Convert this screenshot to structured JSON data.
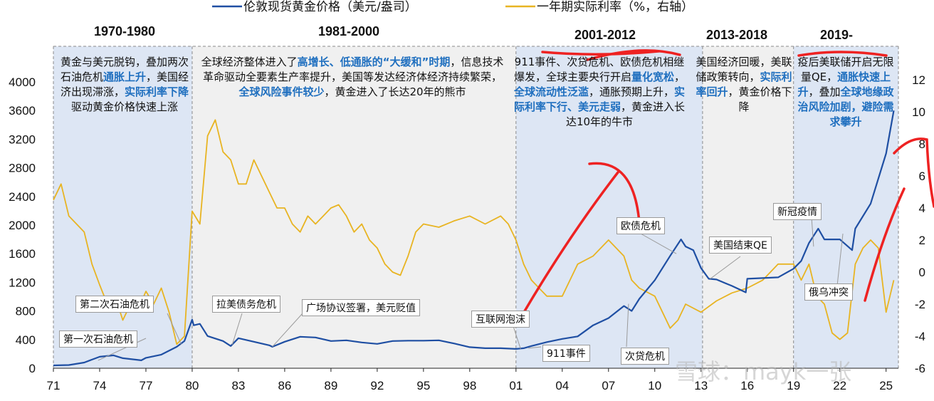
{
  "chart_data": {
    "type": "line",
    "legend": {
      "placement": "top-center",
      "items": [
        {
          "label": "伦敦现货黄金价格（美元/盎司）",
          "color": "#1f4fa3"
        },
        {
          "label": "一年期实际利率（%，右轴）",
          "color": "#e8b422"
        }
      ]
    },
    "x_ticks": [
      "71",
      "74",
      "77",
      "80",
      "83",
      "86",
      "89",
      "92",
      "95",
      "98",
      "01",
      "04",
      "07",
      "10",
      "13",
      "16",
      "19",
      "22",
      "25"
    ],
    "y_left": {
      "min": 0,
      "max": 4000,
      "ticks": [
        "0",
        "400",
        "800",
        "1200",
        "1600",
        "2000",
        "2400",
        "2800",
        "3200",
        "3600",
        "4000"
      ]
    },
    "y_right": {
      "min": -6,
      "max": 12,
      "ticks": [
        "-6",
        "-4",
        "-2",
        "0",
        "2",
        "4",
        "6",
        "8",
        "10",
        "12"
      ]
    },
    "series": [
      {
        "name": "伦敦现货黄金价格（美元/盎司）",
        "axis": "left",
        "color": "#1f4fa3",
        "x": [
          1971,
          1972,
          1973,
          1973.5,
          1974,
          1974.9,
          1975.5,
          1976.7,
          1977,
          1978,
          1979,
          1979.5,
          1980,
          1980.1,
          1980.5,
          1981,
          1982,
          1982.5,
          1983,
          1984,
          1985,
          1985.2,
          1986,
          1987,
          1988,
          1989,
          1990,
          1991,
          1992,
          1993,
          1994,
          1995,
          1996,
          1997,
          1998,
          1999,
          2000,
          2001,
          2001.5,
          2002,
          2003,
          2004,
          2005,
          2006,
          2007,
          2008,
          2008.5,
          2009,
          2010,
          2011,
          2011.7,
          2012,
          2012.5,
          2013,
          2013.5,
          2014,
          2015,
          2015.9,
          2016,
          2017,
          2018,
          2019,
          2019.5,
          2020,
          2020.6,
          2021,
          2022,
          2022.8,
          2023,
          2024,
          2025,
          2025.5
        ],
        "y": [
          40,
          45,
          80,
          120,
          160,
          180,
          140,
          110,
          145,
          190,
          300,
          380,
          680,
          600,
          620,
          450,
          380,
          310,
          420,
          370,
          320,
          300,
          370,
          440,
          430,
          380,
          390,
          360,
          340,
          380,
          385,
          385,
          390,
          345,
          295,
          280,
          280,
          270,
          280,
          310,
          365,
          410,
          445,
          600,
          700,
          870,
          800,
          970,
          1230,
          1570,
          1800,
          1700,
          1650,
          1400,
          1250,
          1240,
          1150,
          1060,
          1250,
          1260,
          1270,
          1390,
          1500,
          1750,
          1950,
          1800,
          1800,
          1650,
          1950,
          2300,
          3000,
          3600
        ]
      },
      {
        "name": "一年期实际利率（%，右轴）",
        "axis": "right",
        "color": "#e8b422",
        "x": [
          1971,
          1971.5,
          1972,
          1972.5,
          1973,
          1973.5,
          1974,
          1974.5,
          1975,
          1975.5,
          1976,
          1976.5,
          1977,
          1977.5,
          1978,
          1978.5,
          1979,
          1979.5,
          1980,
          1980.5,
          1981,
          1981.5,
          1982,
          1982.5,
          1983,
          1983.5,
          1984,
          1984.5,
          1985,
          1985.5,
          1986,
          1986.5,
          1987,
          1987.5,
          1988,
          1988.5,
          1989,
          1989.5,
          1990,
          1990.5,
          1991,
          1991.5,
          1992,
          1992.5,
          1993,
          1993.5,
          1994,
          1994.5,
          1995,
          1996,
          1997,
          1998,
          1999,
          2000,
          2000.5,
          2001,
          2001.5,
          2002,
          2003,
          2004,
          2005,
          2006,
          2007,
          2007.5,
          2008,
          2008.5,
          2009,
          2010,
          2011,
          2011.5,
          2012,
          2013,
          2014,
          2015,
          2016,
          2017,
          2018,
          2019,
          2019.5,
          2020,
          2020.5,
          2021,
          2021.5,
          2022,
          2022.5,
          2023,
          2023.5,
          2024,
          2024.5,
          2025,
          2025.5
        ],
        "y": [
          4.5,
          5.5,
          3.5,
          3.0,
          2.5,
          0.5,
          -0.8,
          -2.0,
          -1.5,
          -3.0,
          -2.0,
          -2.3,
          -1.2,
          -2.0,
          -1.0,
          -2.5,
          -4.5,
          -4.0,
          3.8,
          3.0,
          8.5,
          9.5,
          7.5,
          7.0,
          5.5,
          5.5,
          7.0,
          6.0,
          5.0,
          4.0,
          4.0,
          3.0,
          2.5,
          3.5,
          3.0,
          3.5,
          4.0,
          4.2,
          3.5,
          2.5,
          3.0,
          2.0,
          1.5,
          0.5,
          0.0,
          -0.2,
          1.0,
          2.5,
          3.0,
          2.8,
          3.2,
          3.5,
          3.0,
          3.5,
          3.0,
          2.0,
          0.5,
          -0.5,
          -1.5,
          -1.5,
          0.5,
          1.0,
          2.0,
          1.5,
          1.0,
          -0.5,
          -1.0,
          -1.5,
          -3.5,
          -3.0,
          -2.0,
          -2.5,
          -1.8,
          -1.3,
          -1.0,
          -0.5,
          0.5,
          0.5,
          -0.5,
          0.5,
          -1.5,
          -2.0,
          -3.8,
          -4.2,
          -3.8,
          0.5,
          1.5,
          2.0,
          1.5,
          -2.5,
          -0.5
        ]
      }
    ]
  },
  "periods": [
    {
      "title": "1970-1980"
    },
    {
      "title": "1981-2000"
    },
    {
      "title": "2001-2012"
    },
    {
      "title": "2013-2018"
    },
    {
      "title": "2019-"
    }
  ],
  "descriptions": [
    [
      {
        "t": "黄金与美元脱钩，叠加两次石油危机",
        "hl": false
      },
      {
        "t": "通胀上升",
        "hl": true
      },
      {
        "t": "，美国经济出现滞涨，",
        "hl": false
      },
      {
        "t": "实际利率下降",
        "hl": true
      },
      {
        "t": "驱动黄金价格快速上涨",
        "hl": false
      }
    ],
    [
      {
        "t": "全球经济整体进入了",
        "hl": false
      },
      {
        "t": "高增长、低通胀的“大缓和”时期",
        "hl": true
      },
      {
        "t": "，信息技术革命驱动全要素生产率提升，美国等发达经济体经济持续繁荣，",
        "hl": false
      },
      {
        "t": "全球风险事件较少",
        "hl": true
      },
      {
        "t": "，黄金进入了长达20年的熊市",
        "hl": false
      }
    ],
    [
      {
        "t": "911事件、次贷危机、欧债危机相继爆发，全球主要央行开启",
        "hl": false
      },
      {
        "t": "量化宽松",
        "hl": true
      },
      {
        "t": "，",
        "hl": false
      },
      {
        "t": "全球流动性泛滥",
        "hl": true
      },
      {
        "t": "，通胀预期上升，",
        "hl": false
      },
      {
        "t": "实际利率下行、美元走弱",
        "hl": true
      },
      {
        "t": "，黄金进入长达10年的牛市",
        "hl": false
      }
    ],
    [
      {
        "t": "美国经济回暖，美联储政策转向，",
        "hl": false
      },
      {
        "t": "实际利率回升",
        "hl": true
      },
      {
        "t": "，黄金价格下降",
        "hl": false
      }
    ],
    [
      {
        "t": "疫后美联储开启无限量QE，",
        "hl": false
      },
      {
        "t": "通胀快速上升",
        "hl": true
      },
      {
        "t": "，叠加",
        "hl": false
      },
      {
        "t": "全球地缘政治风险加剧，避险需求攀升",
        "hl": true
      }
    ]
  ],
  "annotations": [
    {
      "label": "第一次石油危机"
    },
    {
      "label": "第二次石油危机"
    },
    {
      "label": "拉美债务危机"
    },
    {
      "label": "广场协议签署，美元贬值"
    },
    {
      "label": "互联网泡沫"
    },
    {
      "label": "911事件"
    },
    {
      "label": "欧债危机"
    },
    {
      "label": "次贷危机"
    },
    {
      "label": "美国结束QE"
    },
    {
      "label": "新冠疫情"
    },
    {
      "label": "俄乌冲突"
    }
  ],
  "watermark": "雪球：mayk一张",
  "colors": {
    "highlight": "#1f6fbf",
    "shade_blue": "#dde6f4",
    "shade_gray": "#f0f0f0",
    "red_mark": "#ee2222"
  }
}
